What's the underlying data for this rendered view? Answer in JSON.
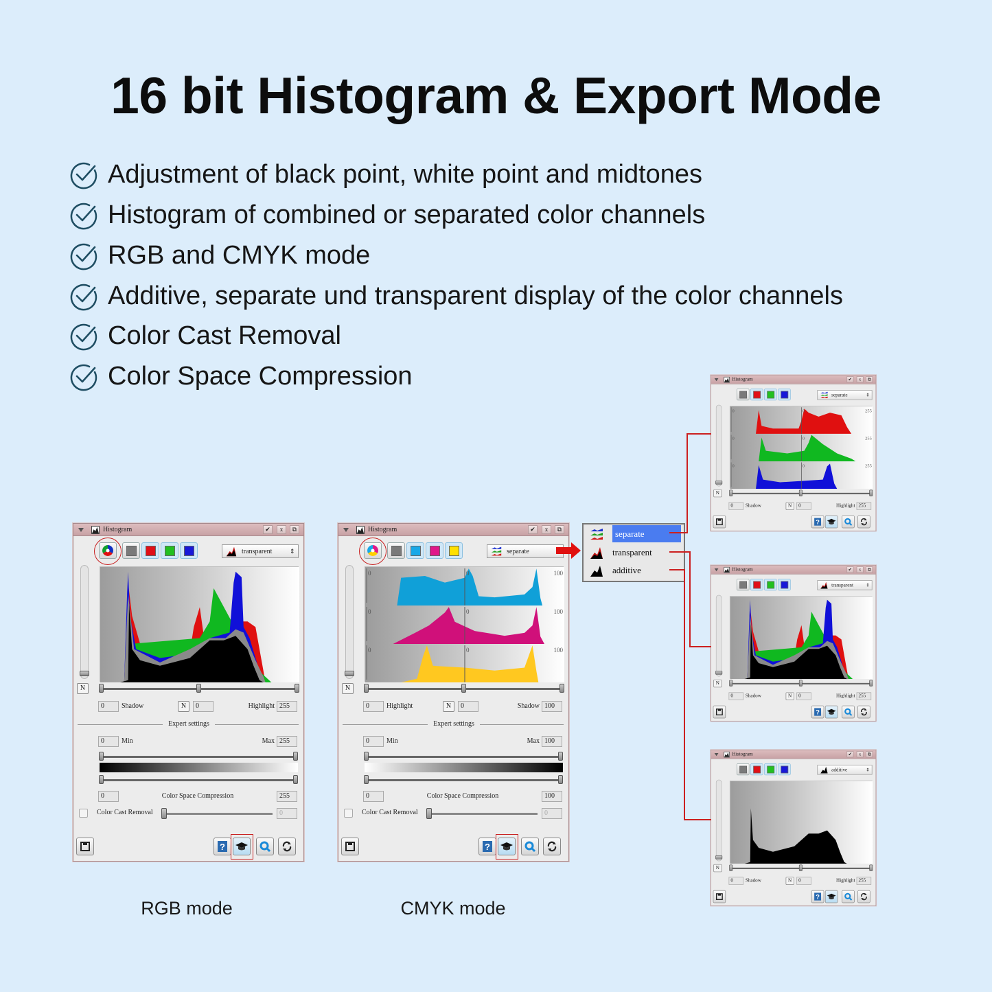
{
  "header": {
    "title": "16 bit Histogram & Export Mode"
  },
  "features": [
    "Adjustment of black point, white point and midtones",
    "Histogram of combined or separated color channels",
    "RGB and CMYK mode",
    "Additive, separate und transparent display of the color channels",
    "Color Cast Removal",
    "Color Space Compression"
  ],
  "colors": {
    "background": "#dcedfb",
    "check_icon": "#1f4e63",
    "highlight_red": "#cc2020",
    "menu_selected": "#4a7cf0"
  },
  "panels": [
    {
      "title": "Histogram",
      "mode": "transparent",
      "mode_icon": "transparent-histogram-icon",
      "channels": [
        "composite-rgb",
        "gray",
        "red",
        "green",
        "blue"
      ],
      "n_label": "N",
      "left_value": "0",
      "left_label": "Shadow",
      "mid_value": "0",
      "right_label": "Highlight",
      "right_value": "255",
      "expert": {
        "title": "Expert settings",
        "min_value": "0",
        "min_label": "Min",
        "max_label": "Max",
        "max_value": "255",
        "csc_left": "0",
        "csc_label": "Color Space Compression",
        "csc_right": "255",
        "ccr_label": "Color Cast Removal",
        "ccr_value": "0"
      },
      "caption": "RGB mode"
    },
    {
      "title": "Histogram",
      "mode": "separate",
      "mode_icon": "separate-histogram-icon",
      "channels": [
        "composite-cmyk",
        "gray",
        "cyan",
        "magenta",
        "yellow"
      ],
      "n_label": "N",
      "left_value": "0",
      "left_label": "Highlight",
      "mid_value": "0",
      "right_label": "Shadow",
      "right_value": "100",
      "hist_min": "0",
      "hist_max": "100",
      "expert": {
        "title": "Expert settings",
        "min_value": "0",
        "min_label": "Min",
        "max_label": "Max",
        "max_value": "100",
        "csc_left": "0",
        "csc_label": "Color Space Compression",
        "csc_right": "100",
        "ccr_label": "Color Cast Removal",
        "ccr_value": "0"
      },
      "caption": "CMYK mode"
    },
    {
      "title": "Histogram",
      "mode": "separate",
      "mode_icon": "separate-histogram-icon",
      "channels": [
        "gray",
        "red",
        "green",
        "blue"
      ],
      "n_label": "N",
      "left_value": "0",
      "left_label": "Shadow",
      "mid_value": "0",
      "right_label": "Highlight",
      "right_value": "255",
      "hist_min": "0",
      "hist_max": "255"
    },
    {
      "title": "Histogram",
      "mode": "transparent",
      "mode_icon": "transparent-histogram-icon",
      "channels": [
        "gray",
        "red",
        "green",
        "blue"
      ],
      "n_label": "N",
      "left_value": "0",
      "left_label": "Shadow",
      "mid_value": "0",
      "right_label": "Highlight",
      "right_value": "255"
    },
    {
      "title": "Histogram",
      "mode": "additive",
      "mode_icon": "additive-histogram-icon",
      "channels": [
        "gray",
        "red",
        "green",
        "blue"
      ],
      "n_label": "N",
      "left_value": "0",
      "left_label": "Shadow",
      "mid_value": "0",
      "right_label": "Highlight",
      "right_value": "255"
    }
  ],
  "mode_menu": {
    "items": [
      "separate",
      "transparent",
      "additive"
    ],
    "selected": "separate"
  }
}
